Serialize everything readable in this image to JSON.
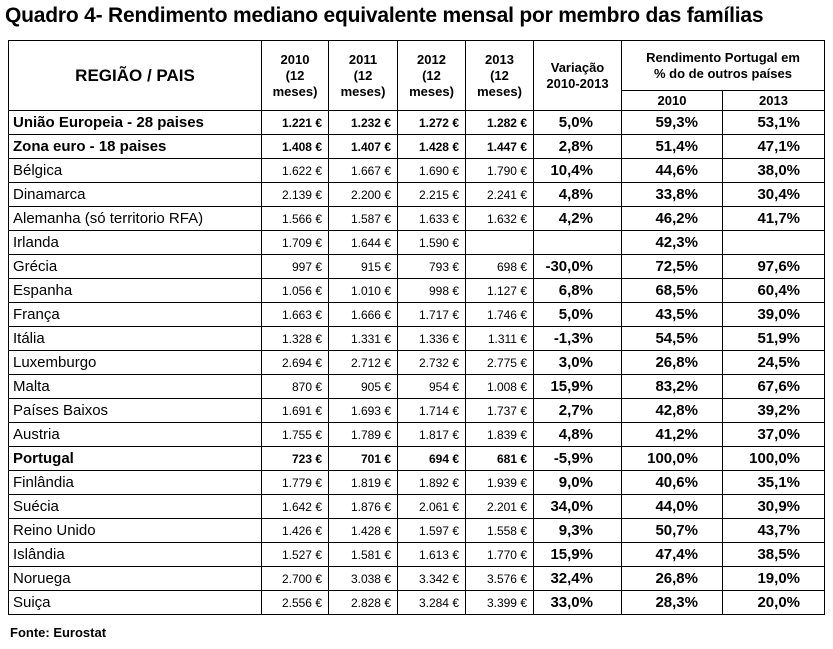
{
  "title": "Quadro 4- Rendimento mediano equivalente mensal por membro das famílias",
  "header": {
    "region": "REGIÃO / PAIS",
    "years": [
      [
        "2010",
        "(12",
        "meses)"
      ],
      [
        "2011",
        "(12",
        "meses)"
      ],
      [
        "2012",
        "(12",
        "meses)"
      ],
      [
        "2013",
        "(12",
        "meses)"
      ]
    ],
    "variation": [
      "Variação",
      "2010-2013"
    ],
    "group": [
      "Rendimento Portugal em",
      "% do de outros países"
    ],
    "sub": [
      "2010",
      "2013"
    ]
  },
  "rows": [
    {
      "region": "União Europeia - 28 paises",
      "v2010": "1.221 €",
      "v2011": "1.232 €",
      "v2012": "1.272 €",
      "v2013": "1.282 €",
      "var": "5,0%",
      "pt2010": "59,3%",
      "pt2013": "53,1%",
      "bold": true
    },
    {
      "region": "Zona euro - 18 paises",
      "v2010": "1.408 €",
      "v2011": "1.407 €",
      "v2012": "1.428 €",
      "v2013": "1.447 €",
      "var": "2,8%",
      "pt2010": "51,4%",
      "pt2013": "47,1%",
      "bold": true
    },
    {
      "region": "Bélgica",
      "v2010": "1.622 €",
      "v2011": "1.667 €",
      "v2012": "1.690 €",
      "v2013": "1.790 €",
      "var": "10,4%",
      "pt2010": "44,6%",
      "pt2013": "38,0%"
    },
    {
      "region": "Dinamarca",
      "v2010": "2.139 €",
      "v2011": "2.200 €",
      "v2012": "2.215 €",
      "v2013": "2.241 €",
      "var": "4,8%",
      "pt2010": "33,8%",
      "pt2013": "30,4%"
    },
    {
      "region": "Alemanha (só territorio RFA)",
      "v2010": "1.566 €",
      "v2011": "1.587 €",
      "v2012": "1.633 €",
      "v2013": "1.632 €",
      "var": "4,2%",
      "pt2010": "46,2%",
      "pt2013": "41,7%"
    },
    {
      "region": "Irlanda",
      "v2010": "1.709 €",
      "v2011": "1.644 €",
      "v2012": "1.590 €",
      "v2013": "",
      "var": "",
      "pt2010": "42,3%",
      "pt2013": ""
    },
    {
      "region": "Grécia",
      "v2010": "997 €",
      "v2011": "915 €",
      "v2012": "793 €",
      "v2013": "698 €",
      "var": "-30,0%",
      "pt2010": "72,5%",
      "pt2013": "97,6%"
    },
    {
      "region": "Espanha",
      "v2010": "1.056 €",
      "v2011": "1.010 €",
      "v2012": "998 €",
      "v2013": "1.127 €",
      "var": "6,8%",
      "pt2010": "68,5%",
      "pt2013": "60,4%"
    },
    {
      "region": "França",
      "v2010": "1.663 €",
      "v2011": "1.666 €",
      "v2012": "1.717 €",
      "v2013": "1.746 €",
      "var": "5,0%",
      "pt2010": "43,5%",
      "pt2013": "39,0%"
    },
    {
      "region": "Itália",
      "v2010": "1.328 €",
      "v2011": "1.331 €",
      "v2012": "1.336 €",
      "v2013": "1.311 €",
      "var": "-1,3%",
      "pt2010": "54,5%",
      "pt2013": "51,9%"
    },
    {
      "region": "Luxemburgo",
      "v2010": "2.694 €",
      "v2011": "2.712 €",
      "v2012": "2.732 €",
      "v2013": "2.775 €",
      "var": "3,0%",
      "pt2010": "26,8%",
      "pt2013": "24,5%"
    },
    {
      "region": "Malta",
      "v2010": "870 €",
      "v2011": "905 €",
      "v2012": "954 €",
      "v2013": "1.008 €",
      "var": "15,9%",
      "pt2010": "83,2%",
      "pt2013": "67,6%"
    },
    {
      "region": "Países Baixos",
      "v2010": "1.691 €",
      "v2011": "1.693 €",
      "v2012": "1.714 €",
      "v2013": "1.737 €",
      "var": "2,7%",
      "pt2010": "42,8%",
      "pt2013": "39,2%"
    },
    {
      "region": "Austria",
      "v2010": "1.755 €",
      "v2011": "1.789 €",
      "v2012": "1.817 €",
      "v2013": "1.839 €",
      "var": "4,8%",
      "pt2010": "41,2%",
      "pt2013": "37,0%"
    },
    {
      "region": "Portugal",
      "v2010": "723 €",
      "v2011": "701 €",
      "v2012": "694 €",
      "v2013": "681 €",
      "var": "-5,9%",
      "pt2010": "100,0%",
      "pt2013": "100,0%",
      "bold": true
    },
    {
      "region": "Finlândia",
      "v2010": "1.779 €",
      "v2011": "1.819 €",
      "v2012": "1.892 €",
      "v2013": "1.939 €",
      "var": "9,0%",
      "pt2010": "40,6%",
      "pt2013": "35,1%"
    },
    {
      "region": "Suécia",
      "v2010": "1.642 €",
      "v2011": "1.876 €",
      "v2012": "2.061 €",
      "v2013": "2.201 €",
      "var": "34,0%",
      "pt2010": "44,0%",
      "pt2013": "30,9%"
    },
    {
      "region": "Reino Unido",
      "v2010": "1.426 €",
      "v2011": "1.428 €",
      "v2012": "1.597 €",
      "v2013": "1.558 €",
      "var": "9,3%",
      "pt2010": "50,7%",
      "pt2013": "43,7%"
    },
    {
      "region": "Islândia",
      "v2010": "1.527 €",
      "v2011": "1.581 €",
      "v2012": "1.613 €",
      "v2013": "1.770 €",
      "var": "15,9%",
      "pt2010": "47,4%",
      "pt2013": "38,5%"
    },
    {
      "region": "Noruega",
      "v2010": "2.700 €",
      "v2011": "3.038 €",
      "v2012": "3.342 €",
      "v2013": "3.576 €",
      "var": "32,4%",
      "pt2010": "26,8%",
      "pt2013": "19,0%"
    },
    {
      "region": "Suiça",
      "v2010": "2.556 €",
      "v2011": "2.828 €",
      "v2012": "3.284 €",
      "v2013": "3.399 €",
      "var": "33,0%",
      "pt2010": "28,3%",
      "pt2013": "20,0%"
    }
  ],
  "source": "Fonte: Eurostat"
}
